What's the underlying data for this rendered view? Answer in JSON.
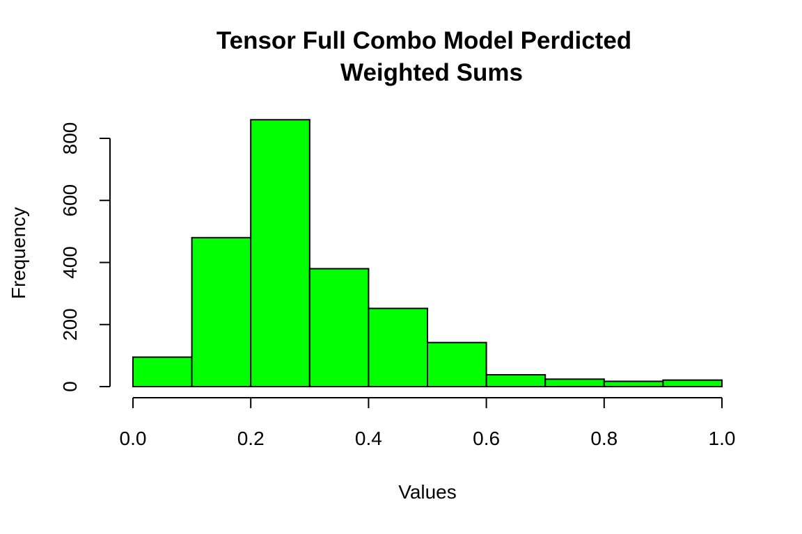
{
  "chart_data": {
    "type": "bar",
    "subtype": "histogram",
    "title": [
      "Tensor Full Combo Model Perdicted",
      "Weighted Sums"
    ],
    "xlabel": "Values",
    "ylabel": "Frequency",
    "bins": [
      {
        "from": 0.0,
        "to": 0.1,
        "count": 95
      },
      {
        "from": 0.1,
        "to": 0.2,
        "count": 480
      },
      {
        "from": 0.2,
        "to": 0.3,
        "count": 860
      },
      {
        "from": 0.3,
        "to": 0.4,
        "count": 380
      },
      {
        "from": 0.4,
        "to": 0.5,
        "count": 252
      },
      {
        "from": 0.5,
        "to": 0.6,
        "count": 142
      },
      {
        "from": 0.6,
        "to": 0.7,
        "count": 38
      },
      {
        "from": 0.7,
        "to": 0.8,
        "count": 24
      },
      {
        "from": 0.8,
        "to": 0.9,
        "count": 17
      },
      {
        "from": 0.9,
        "to": 1.0,
        "count": 21
      }
    ],
    "xlim": [
      0.0,
      1.0
    ],
    "ylim": [
      0,
      800
    ],
    "xticks": [
      "0.0",
      "0.2",
      "0.4",
      "0.6",
      "0.8",
      "1.0"
    ],
    "yticks": [
      "0",
      "200",
      "400",
      "600",
      "800"
    ],
    "bar_color": "#00ff00",
    "grid": false,
    "legend": "none"
  }
}
